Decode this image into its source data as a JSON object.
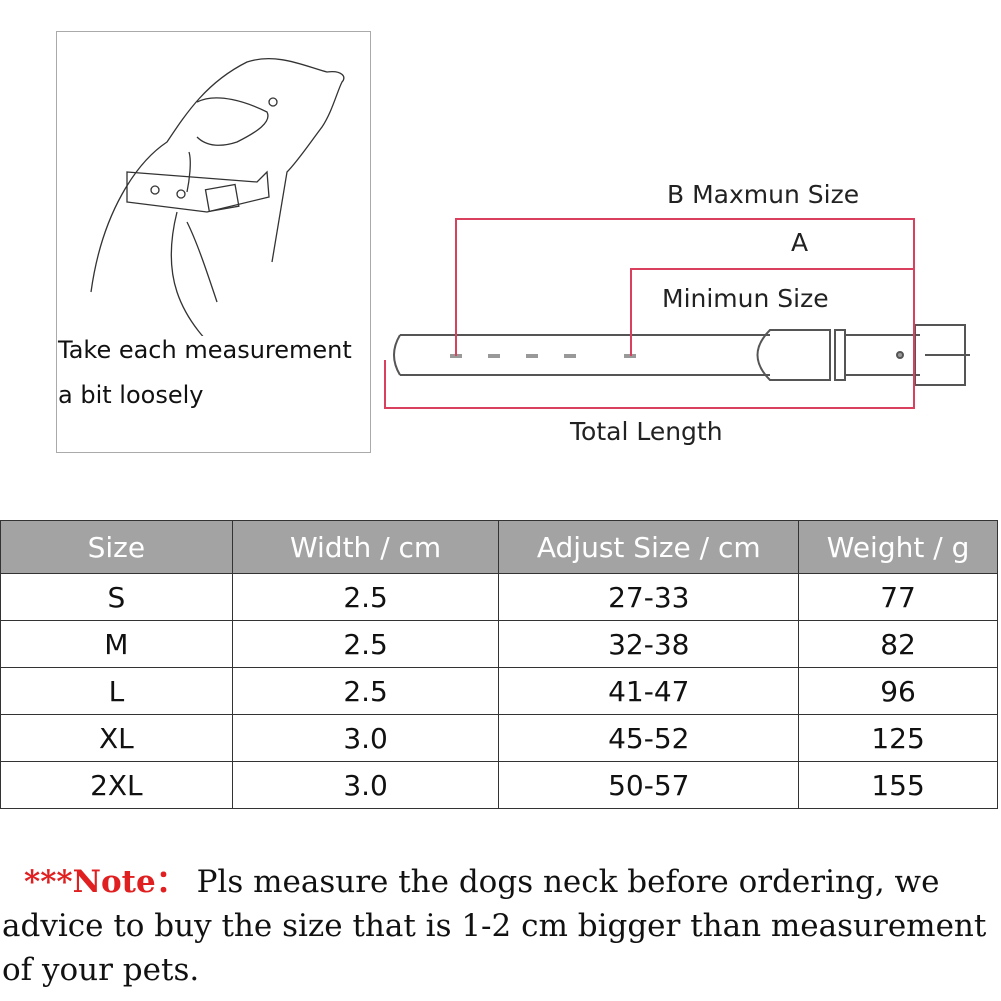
{
  "illustration": {
    "caption_line1": "Take each measurement",
    "caption_line2": "a bit loosely"
  },
  "collar_diagram": {
    "label_b": "B Maxmun Size",
    "label_a": "A",
    "label_min": "Minimun Size",
    "label_total": "Total Length",
    "line_color": "#d9405e"
  },
  "size_table": {
    "headers": [
      "Size",
      "Width / cm",
      "Adjust Size  / cm",
      "Weight / g"
    ],
    "rows": [
      [
        "S",
        "2.5",
        "27-33",
        "77"
      ],
      [
        "M",
        "2.5",
        "32-38",
        "82"
      ],
      [
        "L",
        "2.5",
        "41-47",
        "96"
      ],
      [
        "XL",
        "3.0",
        "45-52",
        "125"
      ],
      [
        "2XL",
        "3.0",
        "50-57",
        "155"
      ]
    ],
    "header_bg": "#a3a3a3"
  },
  "note": {
    "prefix": "***Note：",
    "line1": "Pls measure the dogs neck before ordering, we",
    "line2": "advice to buy the size that is 1-2 cm bigger than measurement",
    "line3": "of your pets.",
    "prefix_color": "#e02020"
  }
}
